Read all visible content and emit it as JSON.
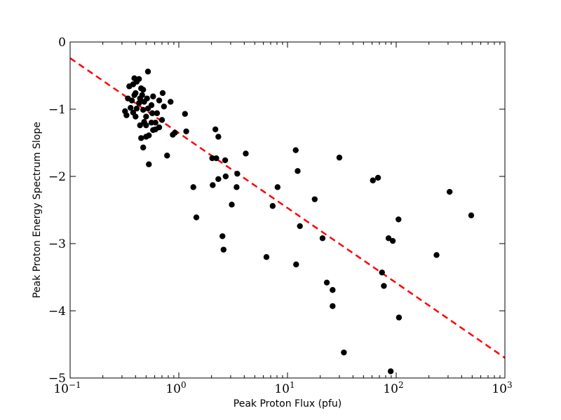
{
  "chart_data": {
    "type": "scatter",
    "title": "",
    "xlabel": "Peak Proton Flux (pfu)",
    "ylabel": "Peak Proton Energy Spectrum Slope",
    "xscale": "log",
    "xlim": [
      0.1,
      1000
    ],
    "ylim": [
      -5,
      0
    ],
    "grid": false,
    "legend": "none",
    "x_ticks": [
      {
        "value": 0.1,
        "base": "10",
        "exp": "−1"
      },
      {
        "value": 1,
        "base": "10",
        "exp": "0"
      },
      {
        "value": 10,
        "base": "10",
        "exp": "1"
      },
      {
        "value": 100,
        "base": "10",
        "exp": "2"
      },
      {
        "value": 1000,
        "base": "10",
        "exp": "3"
      }
    ],
    "y_ticks": [
      {
        "value": 0,
        "label": "0"
      },
      {
        "value": -1,
        "label": "−1"
      },
      {
        "value": -2,
        "label": "−2"
      },
      {
        "value": -3,
        "label": "−3"
      },
      {
        "value": -4,
        "label": "−4"
      },
      {
        "value": -5,
        "label": "−5"
      }
    ],
    "colors": {
      "points": "#000000",
      "fit": "#ff0000"
    },
    "fit_line": {
      "style": "dashed",
      "x": [
        0.1,
        1000
      ],
      "y": [
        -0.24,
        -4.7
      ]
    },
    "points": [
      {
        "x": 0.52,
        "y": -0.44
      },
      {
        "x": 0.39,
        "y": -0.54
      },
      {
        "x": 0.43,
        "y": -0.55
      },
      {
        "x": 0.41,
        "y": -0.59
      },
      {
        "x": 0.38,
        "y": -0.63
      },
      {
        "x": 0.35,
        "y": -0.66
      },
      {
        "x": 0.45,
        "y": -0.69
      },
      {
        "x": 0.47,
        "y": -0.71
      },
      {
        "x": 0.4,
        "y": -0.76
      },
      {
        "x": 0.71,
        "y": -0.76
      },
      {
        "x": 0.39,
        "y": -0.79
      },
      {
        "x": 0.46,
        "y": -0.79
      },
      {
        "x": 0.58,
        "y": -0.81
      },
      {
        "x": 0.34,
        "y": -0.84
      },
      {
        "x": 0.44,
        "y": -0.84
      },
      {
        "x": 0.51,
        "y": -0.84
      },
      {
        "x": 0.37,
        "y": -0.87
      },
      {
        "x": 0.66,
        "y": -0.87
      },
      {
        "x": 0.84,
        "y": -0.89
      },
      {
        "x": 0.48,
        "y": -0.89
      },
      {
        "x": 0.43,
        "y": -0.91
      },
      {
        "x": 0.56,
        "y": -0.94
      },
      {
        "x": 0.36,
        "y": -0.98
      },
      {
        "x": 0.41,
        "y": -0.99
      },
      {
        "x": 0.52,
        "y": -0.99
      },
      {
        "x": 0.73,
        "y": -0.96
      },
      {
        "x": 0.47,
        "y": -1.01
      },
      {
        "x": 0.32,
        "y": -1.03
      },
      {
        "x": 0.38,
        "y": -1.05
      },
      {
        "x": 0.57,
        "y": -1.06
      },
      {
        "x": 0.63,
        "y": -1.06
      },
      {
        "x": 1.14,
        "y": -1.07
      },
      {
        "x": 0.33,
        "y": -1.09
      },
      {
        "x": 0.4,
        "y": -1.11
      },
      {
        "x": 0.5,
        "y": -1.11
      },
      {
        "x": 0.7,
        "y": -1.16
      },
      {
        "x": 0.48,
        "y": -1.19
      },
      {
        "x": 0.56,
        "y": -1.2
      },
      {
        "x": 0.61,
        "y": -1.2
      },
      {
        "x": 0.44,
        "y": -1.24
      },
      {
        "x": 0.5,
        "y": -1.24
      },
      {
        "x": 0.66,
        "y": -1.27
      },
      {
        "x": 0.61,
        "y": -1.3
      },
      {
        "x": 0.58,
        "y": -1.31
      },
      {
        "x": 1.17,
        "y": -1.33
      },
      {
        "x": 0.92,
        "y": -1.35
      },
      {
        "x": 0.88,
        "y": -1.38
      },
      {
        "x": 0.53,
        "y": -1.39
      },
      {
        "x": 0.5,
        "y": -1.41
      },
      {
        "x": 0.45,
        "y": -1.43
      },
      {
        "x": 0.47,
        "y": -1.57
      },
      {
        "x": 0.78,
        "y": -1.69
      },
      {
        "x": 0.53,
        "y": -1.82
      },
      {
        "x": 2.17,
        "y": -1.3
      },
      {
        "x": 2.31,
        "y": -1.41
      },
      {
        "x": 11.9,
        "y": -1.61
      },
      {
        "x": 4.13,
        "y": -1.66
      },
      {
        "x": 2.03,
        "y": -1.73
      },
      {
        "x": 2.21,
        "y": -1.73
      },
      {
        "x": 30.0,
        "y": -1.72
      },
      {
        "x": 2.67,
        "y": -1.76
      },
      {
        "x": 12.4,
        "y": -1.92
      },
      {
        "x": 3.45,
        "y": -1.96
      },
      {
        "x": 2.7,
        "y": -2.0
      },
      {
        "x": 68.0,
        "y": -2.02
      },
      {
        "x": 2.31,
        "y": -2.04
      },
      {
        "x": 61.0,
        "y": -2.06
      },
      {
        "x": 2.05,
        "y": -2.13
      },
      {
        "x": 1.36,
        "y": -2.16
      },
      {
        "x": 3.4,
        "y": -2.16
      },
      {
        "x": 8.1,
        "y": -2.16
      },
      {
        "x": 310.0,
        "y": -2.23
      },
      {
        "x": 17.8,
        "y": -2.34
      },
      {
        "x": 3.07,
        "y": -2.42
      },
      {
        "x": 7.3,
        "y": -2.44
      },
      {
        "x": 490.0,
        "y": -2.58
      },
      {
        "x": 1.45,
        "y": -2.61
      },
      {
        "x": 105.0,
        "y": -2.64
      },
      {
        "x": 13.0,
        "y": -2.74
      },
      {
        "x": 2.52,
        "y": -2.89
      },
      {
        "x": 21.0,
        "y": -2.92
      },
      {
        "x": 85.0,
        "y": -2.92
      },
      {
        "x": 93.0,
        "y": -2.96
      },
      {
        "x": 2.58,
        "y": -3.09
      },
      {
        "x": 235.0,
        "y": -3.17
      },
      {
        "x": 6.4,
        "y": -3.2
      },
      {
        "x": 12.0,
        "y": -3.31
      },
      {
        "x": 74.0,
        "y": -3.43
      },
      {
        "x": 23.0,
        "y": -3.58
      },
      {
        "x": 77.0,
        "y": -3.63
      },
      {
        "x": 26.0,
        "y": -3.69
      },
      {
        "x": 26.0,
        "y": -3.93
      },
      {
        "x": 106.0,
        "y": -4.1
      },
      {
        "x": 33.0,
        "y": -4.62
      },
      {
        "x": 89.0,
        "y": -4.9
      }
    ]
  }
}
